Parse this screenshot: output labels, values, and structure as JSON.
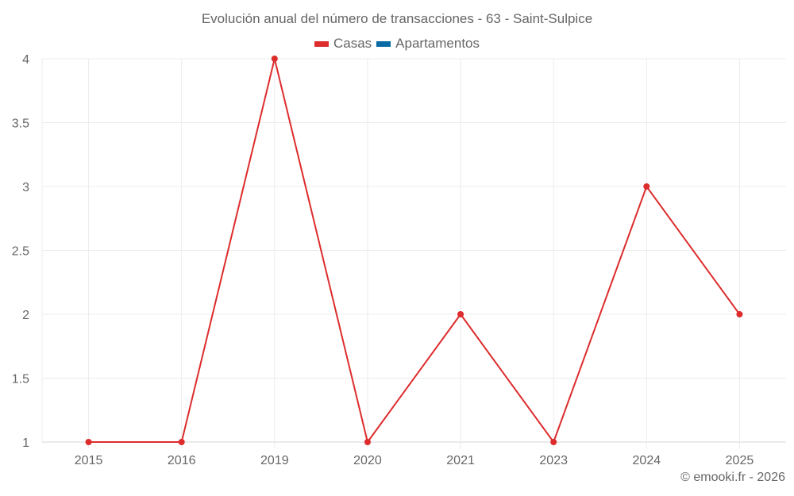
{
  "title": "Evolución anual del número de transacciones - 63 - Saint-Sulpice",
  "legend": [
    {
      "label": "Casas",
      "color": "#dd2c2c"
    },
    {
      "label": "Apartamentos",
      "color": "#0a6aa3"
    }
  ],
  "credit": "© emooki.fr - 2026",
  "chart_data": {
    "type": "line",
    "title": "Evolución anual del número de transacciones - 63 - Saint-Sulpice",
    "xlabel": "",
    "ylabel": "",
    "categories": [
      "2015",
      "2016",
      "2019",
      "2020",
      "2021",
      "2023",
      "2024",
      "2025"
    ],
    "series": [
      {
        "name": "Casas",
        "color": "#dd2c2c",
        "values": [
          1,
          1,
          4,
          1,
          2,
          1,
          3,
          2
        ]
      },
      {
        "name": "Apartamentos",
        "color": "#0a6aa3",
        "values": []
      }
    ],
    "ylim": [
      1,
      4
    ],
    "yticks": [
      1,
      1.5,
      2,
      2.5,
      3,
      3.5,
      4
    ],
    "ytick_labels": [
      "1",
      "1.5",
      "2",
      "2.5",
      "3",
      "3.5",
      "4"
    ],
    "grid": true,
    "legend_position": "top"
  }
}
